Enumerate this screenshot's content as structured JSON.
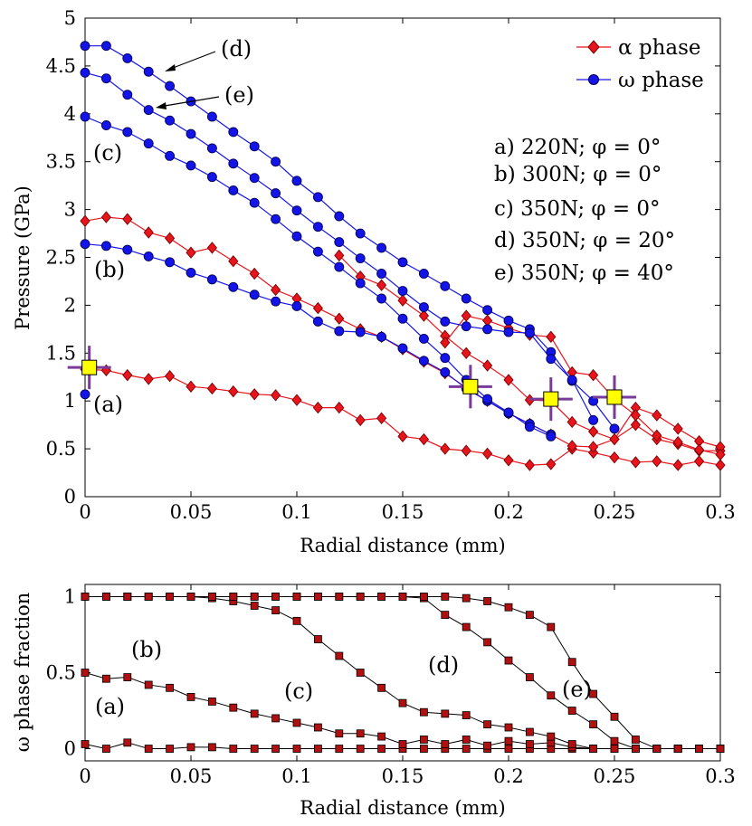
{
  "chart_data": [
    {
      "type": "line",
      "id": "top",
      "xlabel": "Radial distance (mm)",
      "ylabel": "Pressure (GPa)",
      "xlim": [
        0,
        0.3
      ],
      "ylim": [
        0,
        5
      ],
      "xticks": [
        "0",
        "0.05",
        "0.1",
        "0.15",
        "0.2",
        "0.25",
        "0.3"
      ],
      "yticks": [
        "0",
        "0.5",
        "1",
        "1.5",
        "2",
        "2.5",
        "3",
        "3.5",
        "4",
        "4.5",
        "5"
      ],
      "legend": {
        "position": "top-right",
        "entries": [
          {
            "label": "α phase",
            "color": "#cc0000",
            "marker": "diamond"
          },
          {
            "label": "ω phase",
            "color": "#0000cc",
            "marker": "circle"
          }
        ]
      },
      "case_labels": [
        "a) 220N; φ = 0°",
        "b) 300N; φ = 0°",
        "c) 350N; φ = 0°",
        "d) 350N; φ = 20°",
        "e) 350N; φ = 40°"
      ],
      "annotations": [
        "(a)",
        "(b)",
        "(c)",
        "(d)",
        "(e)"
      ],
      "series": [
        {
          "name": "alpha (a)",
          "phase": "alpha",
          "x": [
            0,
            0.01,
            0.02,
            0.03,
            0.04,
            0.05,
            0.06,
            0.07,
            0.08,
            0.09,
            0.1,
            0.11,
            0.12,
            0.13,
            0.14,
            0.15,
            0.16,
            0.17,
            0.18,
            0.19,
            0.2,
            0.21,
            0.22,
            0.23,
            0.24,
            0.25,
            0.26,
            0.27,
            0.28,
            0.29,
            0.3
          ],
          "y": [
            1.33,
            1.32,
            1.27,
            1.23,
            1.26,
            1.15,
            1.13,
            1.1,
            1.07,
            1.06,
            1.01,
            0.93,
            0.93,
            0.8,
            0.82,
            0.63,
            0.6,
            0.5,
            0.48,
            0.45,
            0.38,
            0.33,
            0.34,
            0.5,
            0.46,
            0.41,
            0.36,
            0.37,
            0.33,
            0.37,
            0.33
          ]
        },
        {
          "name": "alpha (b)",
          "phase": "alpha",
          "x": [
            0,
            0.01,
            0.02,
            0.03,
            0.04,
            0.05,
            0.06,
            0.07,
            0.08,
            0.09,
            0.1,
            0.11,
            0.12,
            0.13,
            0.14,
            0.15,
            0.16,
            0.17,
            0.18,
            0.19,
            0.2,
            0.21,
            0.22,
            0.23,
            0.24,
            0.25,
            0.26,
            0.27,
            0.28,
            0.29,
            0.3
          ],
          "y": [
            2.88,
            2.92,
            2.9,
            2.76,
            2.7,
            2.55,
            2.6,
            2.46,
            2.33,
            2.16,
            2.07,
            1.97,
            1.86,
            1.75,
            1.67,
            1.54,
            1.41,
            1.29,
            1.14,
            1.0,
            0.87,
            0.76,
            0.65,
            0.53,
            0.52,
            0.6,
            0.75,
            0.6,
            0.55,
            0.48,
            0.48
          ]
        },
        {
          "name": "alpha (d)",
          "phase": "alpha",
          "x": [
            0.12,
            0.13,
            0.14,
            0.15,
            0.16,
            0.17,
            0.18,
            0.19,
            0.2,
            0.21,
            0.22,
            0.23,
            0.24,
            0.25,
            0.26,
            0.27,
            0.28,
            0.29,
            0.3
          ],
          "y": [
            2.52,
            2.3,
            2.21,
            2.05,
            1.89,
            1.68,
            1.5,
            1.37,
            1.22,
            1.01,
            1.0,
            0.78,
            0.68,
            0.6,
            0.93,
            0.85,
            0.71,
            0.58,
            0.52
          ]
        },
        {
          "name": "alpha (e)",
          "phase": "alpha",
          "x": [
            0.17,
            0.18,
            0.19,
            0.2,
            0.21,
            0.22,
            0.23,
            0.24,
            0.25,
            0.26,
            0.27,
            0.28,
            0.29,
            0.3
          ],
          "y": [
            1.61,
            1.89,
            1.84,
            1.76,
            1.69,
            1.67,
            1.3,
            1.27,
            1.02,
            0.85,
            0.64,
            0.57,
            0.49,
            0.44
          ]
        },
        {
          "name": "omega (a)",
          "phase": "omega",
          "x": [
            0
          ],
          "y": [
            1.07
          ]
        },
        {
          "name": "omega (b)",
          "phase": "omega",
          "x": [
            0,
            0.01,
            0.02,
            0.03,
            0.04,
            0.05,
            0.06,
            0.07,
            0.08,
            0.09,
            0.1,
            0.11,
            0.12,
            0.13,
            0.14,
            0.15,
            0.16,
            0.17,
            0.18,
            0.19,
            0.2,
            0.21,
            0.22
          ],
          "y": [
            2.64,
            2.62,
            2.58,
            2.51,
            2.45,
            2.34,
            2.27,
            2.19,
            2.11,
            2.04,
            1.99,
            1.83,
            1.73,
            1.72,
            1.67,
            1.55,
            1.42,
            1.3,
            1.13,
            1.0,
            0.87,
            0.76,
            0.65
          ]
        },
        {
          "name": "omega (c)",
          "phase": "omega",
          "x": [
            0,
            0.01,
            0.02,
            0.03,
            0.04,
            0.05,
            0.06,
            0.07,
            0.08,
            0.09,
            0.1,
            0.11,
            0.12,
            0.13,
            0.14,
            0.15,
            0.16,
            0.17,
            0.18,
            0.19,
            0.2,
            0.21,
            0.22
          ],
          "y": [
            3.97,
            3.88,
            3.81,
            3.69,
            3.56,
            3.46,
            3.34,
            3.2,
            3.07,
            2.9,
            2.72,
            2.56,
            2.4,
            2.23,
            2.07,
            1.86,
            1.65,
            1.45,
            1.22,
            1.02,
            0.88,
            0.73,
            0.63
          ]
        },
        {
          "name": "omega (d)",
          "phase": "omega",
          "x": [
            0,
            0.01,
            0.02,
            0.03,
            0.04,
            0.05,
            0.06,
            0.07,
            0.08,
            0.09,
            0.1,
            0.11,
            0.12,
            0.13,
            0.14,
            0.15,
            0.16,
            0.17,
            0.18,
            0.19,
            0.2,
            0.21,
            0.22,
            0.23,
            0.24,
            0.25
          ],
          "y": [
            4.71,
            4.71,
            4.58,
            4.44,
            4.29,
            4.13,
            3.97,
            3.81,
            3.66,
            3.5,
            3.3,
            3.13,
            2.93,
            2.75,
            2.6,
            2.45,
            2.33,
            2.2,
            2.07,
            1.95,
            1.84,
            1.75,
            1.51,
            1.21,
            1.0,
            0.71
          ]
        },
        {
          "name": "omega (e)",
          "phase": "omega",
          "x": [
            0,
            0.01,
            0.02,
            0.03,
            0.04,
            0.05,
            0.06,
            0.07,
            0.08,
            0.09,
            0.1,
            0.11,
            0.12,
            0.13,
            0.14,
            0.15,
            0.16,
            0.17,
            0.18,
            0.19,
            0.2,
            0.21,
            0.22,
            0.23,
            0.24
          ],
          "y": [
            4.43,
            4.37,
            4.2,
            4.04,
            3.93,
            3.79,
            3.64,
            3.48,
            3.33,
            3.17,
            2.99,
            2.82,
            2.66,
            2.49,
            2.33,
            2.15,
            1.98,
            1.83,
            1.78,
            1.75,
            1.72,
            1.71,
            1.44,
            1.22,
            0.8
          ]
        }
      ],
      "highlights": [
        {
          "x": 0.002,
          "y": 1.35
        },
        {
          "x": 0.182,
          "y": 1.15
        },
        {
          "x": 0.22,
          "y": 1.02
        },
        {
          "x": 0.25,
          "y": 1.04
        }
      ]
    },
    {
      "type": "line",
      "id": "bottom",
      "xlabel": "Radial distance (mm)",
      "ylabel": "ω phase fraction",
      "xlim": [
        0,
        0.3
      ],
      "ylim": [
        -0.08,
        1.08
      ],
      "xticks": [
        "0",
        "0.05",
        "0.1",
        "0.15",
        "0.2",
        "0.25",
        "0.3"
      ],
      "yticks": [
        "0",
        "0.5",
        "1"
      ],
      "annotations": [
        "(a)",
        "(b)",
        "(c)",
        "(d)",
        "(e)"
      ],
      "series": [
        {
          "name": "(a)",
          "x": [
            0,
            0.01,
            0.02,
            0.03,
            0.04,
            0.05,
            0.06,
            0.07,
            0.08,
            0.09,
            0.1,
            0.11,
            0.12,
            0.13,
            0.14,
            0.15,
            0.16,
            0.17,
            0.18,
            0.19,
            0.2,
            0.21,
            0.22,
            0.23,
            0.24,
            0.25,
            0.26,
            0.27,
            0.28,
            0.29,
            0.3
          ],
          "y": [
            0.03,
            0.0,
            0.04,
            0.0,
            0.0,
            0.01,
            0.01,
            0.0,
            0.0,
            0.0,
            0.0,
            0.0,
            0.0,
            0.0,
            0.0,
            0.0,
            0.0,
            0.0,
            0.0,
            0.0,
            0.0,
            0.0,
            0.0,
            0.0,
            0.0,
            0.0,
            0.0,
            0.0,
            0.0,
            0.0,
            0.0
          ]
        },
        {
          "name": "(b)",
          "x": [
            0,
            0.01,
            0.02,
            0.03,
            0.04,
            0.05,
            0.06,
            0.07,
            0.08,
            0.09,
            0.1,
            0.11,
            0.12,
            0.13,
            0.14,
            0.15,
            0.16,
            0.17,
            0.18,
            0.19,
            0.2,
            0.21,
            0.22,
            0.23,
            0.24,
            0.25,
            0.26,
            0.27,
            0.28,
            0.29,
            0.3
          ],
          "y": [
            0.5,
            0.46,
            0.47,
            0.42,
            0.4,
            0.34,
            0.31,
            0.27,
            0.23,
            0.2,
            0.17,
            0.14,
            0.1,
            0.1,
            0.08,
            0.03,
            0.06,
            0.03,
            0.06,
            0.02,
            0.05,
            0.03,
            0.04,
            0.01,
            0.0,
            0.0,
            0.0,
            0.0,
            0.0,
            0.0,
            0.0
          ]
        },
        {
          "name": "(c)",
          "x": [
            0,
            0.01,
            0.02,
            0.03,
            0.04,
            0.05,
            0.06,
            0.07,
            0.08,
            0.09,
            0.1,
            0.11,
            0.12,
            0.13,
            0.14,
            0.15,
            0.16,
            0.17,
            0.18,
            0.19,
            0.2,
            0.21,
            0.22,
            0.23,
            0.24,
            0.25,
            0.26,
            0.27,
            0.28,
            0.29,
            0.3
          ],
          "y": [
            1.0,
            1.0,
            1.0,
            1.0,
            1.0,
            1.0,
            0.99,
            0.97,
            0.94,
            0.91,
            0.84,
            0.72,
            0.61,
            0.5,
            0.4,
            0.3,
            0.24,
            0.23,
            0.22,
            0.16,
            0.14,
            0.11,
            0.08,
            0.03,
            0.0,
            0.0,
            0.0,
            0.0,
            0.0,
            0.0,
            0.0
          ]
        },
        {
          "name": "(d)",
          "x": [
            0,
            0.01,
            0.02,
            0.03,
            0.04,
            0.05,
            0.06,
            0.07,
            0.08,
            0.09,
            0.1,
            0.11,
            0.12,
            0.13,
            0.14,
            0.15,
            0.16,
            0.17,
            0.18,
            0.19,
            0.2,
            0.21,
            0.22,
            0.23,
            0.24,
            0.25,
            0.26,
            0.27,
            0.28,
            0.29,
            0.3
          ],
          "y": [
            1.0,
            1.0,
            1.0,
            1.0,
            1.0,
            1.0,
            1.0,
            1.0,
            1.0,
            1.0,
            1.0,
            1.0,
            1.0,
            1.0,
            1.0,
            1.0,
            0.99,
            0.88,
            0.8,
            0.7,
            0.58,
            0.47,
            0.35,
            0.25,
            0.16,
            0.05,
            0.0,
            0.0,
            0.0,
            0.0,
            0.0
          ]
        },
        {
          "name": "(e)",
          "x": [
            0,
            0.01,
            0.02,
            0.03,
            0.04,
            0.05,
            0.06,
            0.07,
            0.08,
            0.09,
            0.1,
            0.11,
            0.12,
            0.13,
            0.14,
            0.15,
            0.16,
            0.17,
            0.18,
            0.19,
            0.2,
            0.21,
            0.22,
            0.23,
            0.24,
            0.25,
            0.26,
            0.27,
            0.28,
            0.29,
            0.3
          ],
          "y": [
            1.0,
            1.0,
            1.0,
            1.0,
            1.0,
            1.0,
            1.0,
            1.0,
            1.0,
            1.0,
            1.0,
            1.0,
            1.0,
            1.0,
            1.0,
            1.0,
            1.0,
            1.0,
            0.99,
            0.97,
            0.93,
            0.88,
            0.8,
            0.57,
            0.36,
            0.21,
            0.06,
            0.0,
            0.0,
            0.0,
            0.0
          ]
        }
      ]
    }
  ],
  "colors": {
    "alpha": "#e8141c",
    "alpha_edge": "#7a0000",
    "omega": "#1414e8",
    "omega_edge": "#00005a",
    "frac_marker": "#b01010",
    "highlight": "#ffff00",
    "highlight_cross": "#7a3a9a"
  }
}
